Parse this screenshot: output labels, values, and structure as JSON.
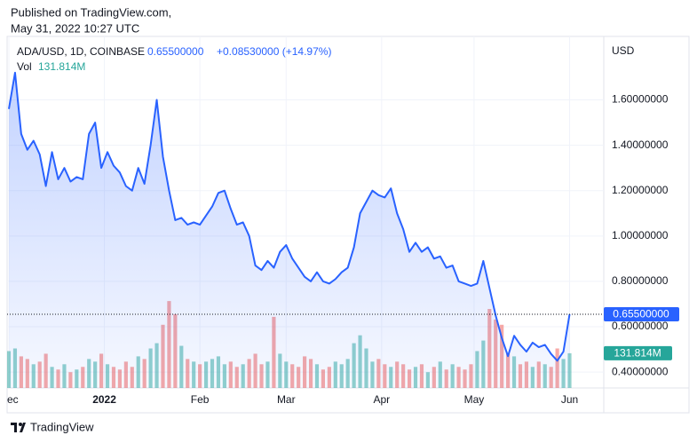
{
  "header": {
    "published": "Published on TradingView.com,",
    "date": "May 31, 2022 10:27 UTC"
  },
  "footer": {
    "brand": "TradingView"
  },
  "chart_data": {
    "type": "line",
    "currency": "USD",
    "change": "+0.08530000 (+14.97%)",
    "ylim": [
      0.33,
      1.88
    ],
    "yticks": [
      {
        "value": 0.4,
        "label": "0.40000000"
      },
      {
        "value": 0.6,
        "label": "0.60000000"
      },
      {
        "value": 0.8,
        "label": "0.80000000"
      },
      {
        "value": 1.0,
        "label": "1.00000000"
      },
      {
        "value": 1.2,
        "label": "1.20000000"
      },
      {
        "value": 1.4,
        "label": "1.40000000"
      },
      {
        "value": 1.6,
        "label": "1.60000000"
      }
    ],
    "y2lim": [
      0,
      1335
    ],
    "xlim": [
      0,
      91
    ],
    "xticks": [
      {
        "value": 0,
        "label": "Dec"
      },
      {
        "value": 15.5,
        "label": "2022"
      },
      {
        "value": 31,
        "label": "Feb"
      },
      {
        "value": 45,
        "label": "Mar"
      },
      {
        "value": 60.5,
        "label": "Apr"
      },
      {
        "value": 75.5,
        "label": "May"
      },
      {
        "value": 91,
        "label": "Jun"
      }
    ],
    "grid": true,
    "series": [
      {
        "name": "ADA/USD, 1D, COINBASE",
        "color": "#2962ff",
        "last_label": "0.65500000",
        "values": [
          1.56,
          1.72,
          1.45,
          1.38,
          1.42,
          1.36,
          1.22,
          1.37,
          1.25,
          1.3,
          1.24,
          1.26,
          1.25,
          1.45,
          1.5,
          1.3,
          1.37,
          1.31,
          1.28,
          1.22,
          1.2,
          1.3,
          1.23,
          1.4,
          1.6,
          1.35,
          1.2,
          1.07,
          1.08,
          1.05,
          1.06,
          1.05,
          1.09,
          1.13,
          1.19,
          1.2,
          1.12,
          1.05,
          1.06,
          1.0,
          0.87,
          0.85,
          0.89,
          0.86,
          0.93,
          0.96,
          0.9,
          0.86,
          0.82,
          0.8,
          0.84,
          0.8,
          0.79,
          0.81,
          0.84,
          0.86,
          0.95,
          1.1,
          1.15,
          1.2,
          1.18,
          1.17,
          1.21,
          1.1,
          1.03,
          0.93,
          0.97,
          0.93,
          0.95,
          0.9,
          0.91,
          0.86,
          0.87,
          0.8,
          0.79,
          0.78,
          0.79,
          0.89,
          0.77,
          0.65,
          0.55,
          0.47,
          0.56,
          0.52,
          0.49,
          0.53,
          0.51,
          0.52,
          0.48,
          0.45,
          0.49,
          0.655
        ]
      },
      {
        "name": "Vol",
        "axis": "y2",
        "up_color": "#26a69a",
        "down_color": "#ef5350",
        "last_label": "131.814M",
        "values": [
          140,
          150,
          120,
          110,
          90,
          100,
          130,
          80,
          70,
          90,
          60,
          70,
          80,
          110,
          100,
          130,
          90,
          80,
          70,
          100,
          80,
          120,
          110,
          150,
          170,
          240,
          330,
          280,
          160,
          110,
          100,
          90,
          100,
          110,
          120,
          90,
          100,
          80,
          90,
          110,
          130,
          90,
          100,
          270,
          130,
          100,
          90,
          80,
          120,
          110,
          90,
          70,
          80,
          100,
          90,
          110,
          170,
          200,
          150,
          100,
          110,
          90,
          80,
          100,
          90,
          70,
          80,
          90,
          60,
          80,
          100,
          70,
          90,
          80,
          70,
          90,
          140,
          180,
          300,
          260,
          240,
          130,
          120,
          90,
          100,
          80,
          100,
          90,
          80,
          150,
          110,
          131.814
        ]
      }
    ]
  }
}
